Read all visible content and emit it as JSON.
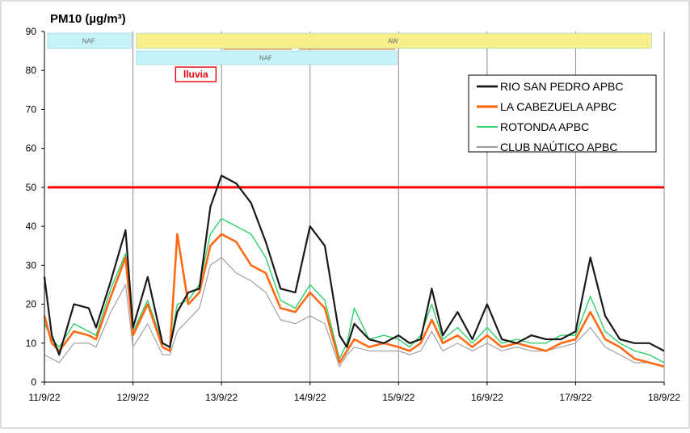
{
  "chart_data": {
    "type": "line",
    "title": "PM10 (µg/m³)",
    "x_ticks": [
      "11/9/22",
      "12/9/22",
      "13/9/22",
      "14/9/22",
      "15/9/22",
      "16/9/22",
      "17/9/22",
      "18/9/22"
    ],
    "xlim": [
      "11/9/22 00:00",
      "18/9/22 00:00"
    ],
    "ylim": [
      0,
      90
    ],
    "y_ticks": [
      0,
      10,
      20,
      30,
      40,
      50,
      60,
      70,
      80,
      90
    ],
    "grid": "vertical lines at each day",
    "legend_position": "top-right",
    "limit_line": {
      "value": 50,
      "color": "#ff0000"
    },
    "bands": [
      {
        "label": "NAF",
        "start": "11/9/22 00:00",
        "end": "12/9/22 00:00",
        "row": 1,
        "color": "#c6f3f7"
      },
      {
        "label": "AW",
        "start": "12/9/22 00:00",
        "end": "17/9/22 21:00",
        "row": 1,
        "color": "#f7f08a"
      },
      {
        "label": "NAF",
        "start": "12/9/22 00:00",
        "end": "15/9/22 00:00",
        "row": 2,
        "color": "#c6f3f7"
      }
    ],
    "annotation": {
      "text": "lluvia",
      "date": "12/9/22 12:00",
      "value": 79,
      "color": "#e8000b"
    },
    "series": [
      {
        "name": "RIO SAN PEDRO APBC",
        "color": "#1a1a1a",
        "width": 2.2,
        "x": [
          "11/9/22 00:00",
          "11/9/22 02:00",
          "11/9/22 04:00",
          "11/9/22 08:00",
          "11/9/22 12:00",
          "11/9/22 14:00",
          "11/9/22 18:00",
          "11/9/22 22:00",
          "11/9/22 24:00",
          "12/9/22 04:00",
          "12/9/22 08:00",
          "12/9/22 10:00",
          "12/9/22 12:00",
          "12/9/22 15:00",
          "12/9/22 18:00",
          "12/9/22 21:00",
          "13/9/22 00:00",
          "13/9/22 04:00",
          "13/9/22 08:00",
          "13/9/22 12:00",
          "13/9/22 16:00",
          "13/9/22 20:00",
          "14/9/22 00:00",
          "14/9/22 04:00",
          "14/9/22 08:00",
          "14/9/22 10:00",
          "14/9/22 12:00",
          "14/9/22 16:00",
          "14/9/22 20:00",
          "15/9/22 00:00",
          "15/9/22 03:00",
          "15/9/22 06:00",
          "15/9/22 09:00",
          "15/9/22 12:00",
          "15/9/22 16:00",
          "15/9/22 20:00",
          "16/9/22 00:00",
          "16/9/22 04:00",
          "16/9/22 08:00",
          "16/9/22 12:00",
          "16/9/22 16:00",
          "16/9/22 20:00",
          "17/9/22 00:00",
          "17/9/22 04:00",
          "17/9/22 08:00",
          "17/9/22 12:00",
          "17/9/22 16:00",
          "17/9/22 20:00",
          "18/9/22 00:00"
        ],
        "y": [
          27,
          12,
          7,
          20,
          19,
          14,
          26,
          39,
          14,
          27,
          10,
          9,
          18,
          23,
          24,
          45,
          53,
          51,
          46,
          36,
          24,
          23,
          40,
          35,
          12,
          9,
          15,
          11,
          10,
          12,
          10,
          11,
          24,
          12,
          18,
          11,
          20,
          11,
          10,
          12,
          11,
          11,
          13,
          32,
          17,
          11,
          10,
          10,
          8
        ]
      },
      {
        "name": "LA CABEZUELA APBC",
        "color": "#ff6a13",
        "width": 2.6,
        "x": [
          "11/9/22 00:00",
          "11/9/22 02:00",
          "11/9/22 04:00",
          "11/9/22 08:00",
          "11/9/22 12:00",
          "11/9/22 14:00",
          "11/9/22 18:00",
          "11/9/22 22:00",
          "11/9/22 24:00",
          "12/9/22 04:00",
          "12/9/22 08:00",
          "12/9/22 10:00",
          "12/9/22 12:00",
          "12/9/22 15:00",
          "12/9/22 18:00",
          "12/9/22 21:00",
          "13/9/22 00:00",
          "13/9/22 04:00",
          "13/9/22 08:00",
          "13/9/22 12:00",
          "13/9/22 16:00",
          "13/9/22 20:00",
          "14/9/22 00:00",
          "14/9/22 04:00",
          "14/9/22 08:00",
          "14/9/22 10:00",
          "14/9/22 12:00",
          "14/9/22 16:00",
          "14/9/22 20:00",
          "15/9/22 00:00",
          "15/9/22 03:00",
          "15/9/22 06:00",
          "15/9/22 09:00",
          "15/9/22 12:00",
          "15/9/22 16:00",
          "15/9/22 20:00",
          "16/9/22 00:00",
          "16/9/22 04:00",
          "16/9/22 08:00",
          "16/9/22 12:00",
          "16/9/22 16:00",
          "16/9/22 20:00",
          "17/9/22 00:00",
          "17/9/22 04:00",
          "17/9/22 08:00",
          "17/9/22 12:00",
          "17/9/22 16:00",
          "17/9/22 20:00",
          "18/9/22 00:00"
        ],
        "y": [
          17,
          10,
          8,
          13,
          12,
          11,
          22,
          32,
          12,
          20,
          9,
          8,
          38,
          20,
          23,
          35,
          38,
          36,
          30,
          28,
          19,
          18,
          23,
          19,
          5,
          8,
          11,
          9,
          10,
          9,
          8,
          10,
          16,
          10,
          12,
          9,
          12,
          9,
          10,
          9,
          8,
          10,
          11,
          18,
          11,
          9,
          6,
          5,
          4
        ]
      },
      {
        "name": "ROTONDA  APBC",
        "color": "#2ed16b",
        "width": 1.4,
        "x": [
          "11/9/22 00:00",
          "11/9/22 02:00",
          "11/9/22 04:00",
          "11/9/22 08:00",
          "11/9/22 12:00",
          "11/9/22 14:00",
          "11/9/22 18:00",
          "11/9/22 22:00",
          "11/9/22 24:00",
          "12/9/22 04:00",
          "12/9/22 08:00",
          "12/9/22 10:00",
          "12/9/22 12:00",
          "12/9/22 15:00",
          "12/9/22 18:00",
          "12/9/22 21:00",
          "13/9/22 00:00",
          "13/9/22 04:00",
          "13/9/22 08:00",
          "13/9/22 12:00",
          "13/9/22 16:00",
          "13/9/22 20:00",
          "14/9/22 00:00",
          "14/9/22 04:00",
          "14/9/22 08:00",
          "14/9/22 10:00",
          "14/9/22 12:00",
          "14/9/22 16:00",
          "14/9/22 20:00",
          "15/9/22 00:00",
          "15/9/22 03:00",
          "15/9/22 06:00",
          "15/9/22 09:00",
          "15/9/22 12:00",
          "15/9/22 16:00",
          "15/9/22 20:00",
          "16/9/22 00:00",
          "16/9/22 04:00",
          "16/9/22 08:00",
          "16/9/22 12:00",
          "16/9/22 16:00",
          "16/9/22 20:00",
          "17/9/22 00:00",
          "17/9/22 04:00",
          "17/9/22 08:00",
          "17/9/22 12:00",
          "17/9/22 16:00",
          "17/9/22 20:00",
          "18/9/22 00:00"
        ],
        "y": [
          15,
          11,
          9,
          15,
          13,
          12,
          24,
          33,
          13,
          21,
          10,
          9,
          20,
          21,
          25,
          38,
          42,
          40,
          38,
          32,
          21,
          19,
          25,
          21,
          6,
          10,
          19,
          11,
          12,
          11,
          9,
          12,
          20,
          11,
          14,
          10,
          14,
          10,
          11,
          10,
          10,
          12,
          12,
          22,
          13,
          10,
          8,
          7,
          5
        ]
      },
      {
        "name": "CLUB NAÚTICO  APBC",
        "color": "#9a9a9a",
        "width": 1.1,
        "x": [
          "11/9/22 00:00",
          "11/9/22 02:00",
          "11/9/22 04:00",
          "11/9/22 08:00",
          "11/9/22 12:00",
          "11/9/22 14:00",
          "11/9/22 18:00",
          "11/9/22 22:00",
          "11/9/22 24:00",
          "12/9/22 04:00",
          "12/9/22 08:00",
          "12/9/22 10:00",
          "12/9/22 12:00",
          "12/9/22 15:00",
          "12/9/22 18:00",
          "12/9/22 21:00",
          "13/9/22 00:00",
          "13/9/22 04:00",
          "13/9/22 08:00",
          "13/9/22 12:00",
          "13/9/22 16:00",
          "13/9/22 20:00",
          "14/9/22 00:00",
          "14/9/22 04:00",
          "14/9/22 08:00",
          "14/9/22 10:00",
          "14/9/22 12:00",
          "14/9/22 16:00",
          "14/9/22 20:00",
          "15/9/22 00:00",
          "15/9/22 03:00",
          "15/9/22 06:00",
          "15/9/22 09:00",
          "15/9/22 12:00",
          "15/9/22 16:00",
          "15/9/22 20:00",
          "16/9/22 00:00",
          "16/9/22 04:00",
          "16/9/22 08:00",
          "16/9/22 12:00",
          "16/9/22 16:00",
          "16/9/22 20:00",
          "17/9/22 00:00",
          "17/9/22 04:00",
          "17/9/22 08:00",
          "17/9/22 12:00",
          "17/9/22 16:00",
          "17/9/22 20:00",
          "18/9/22 00:00"
        ],
        "y": [
          7,
          6,
          5,
          10,
          10,
          9,
          18,
          25,
          9,
          15,
          7,
          7,
          13,
          16,
          19,
          30,
          32,
          28,
          26,
          23,
          16,
          15,
          17,
          15,
          4,
          7,
          9,
          8,
          8,
          8,
          7,
          8,
          13,
          8,
          10,
          8,
          10,
          8,
          9,
          8,
          8,
          9,
          10,
          14,
          9,
          7,
          5,
          5,
          4
        ]
      }
    ]
  }
}
